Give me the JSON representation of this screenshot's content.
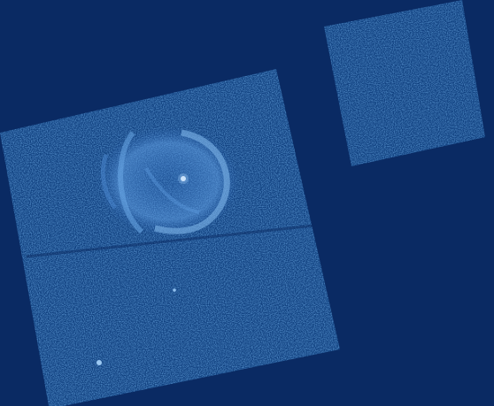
{
  "image": {
    "kind": "x-ray detector mosaic",
    "background_color": "#0a2a63",
    "chip_color": "#0f3b7c",
    "noise_color": "#1d5cb0",
    "highlight_color": "#7fb6ea",
    "chips": [
      {
        "name": "main-chip"
      },
      {
        "name": "secondary-chip"
      }
    ],
    "features": [
      {
        "name": "nebula-shell"
      },
      {
        "name": "central-point-source"
      },
      {
        "name": "faint-source-lower-left"
      },
      {
        "name": "faint-source-center"
      }
    ]
  }
}
